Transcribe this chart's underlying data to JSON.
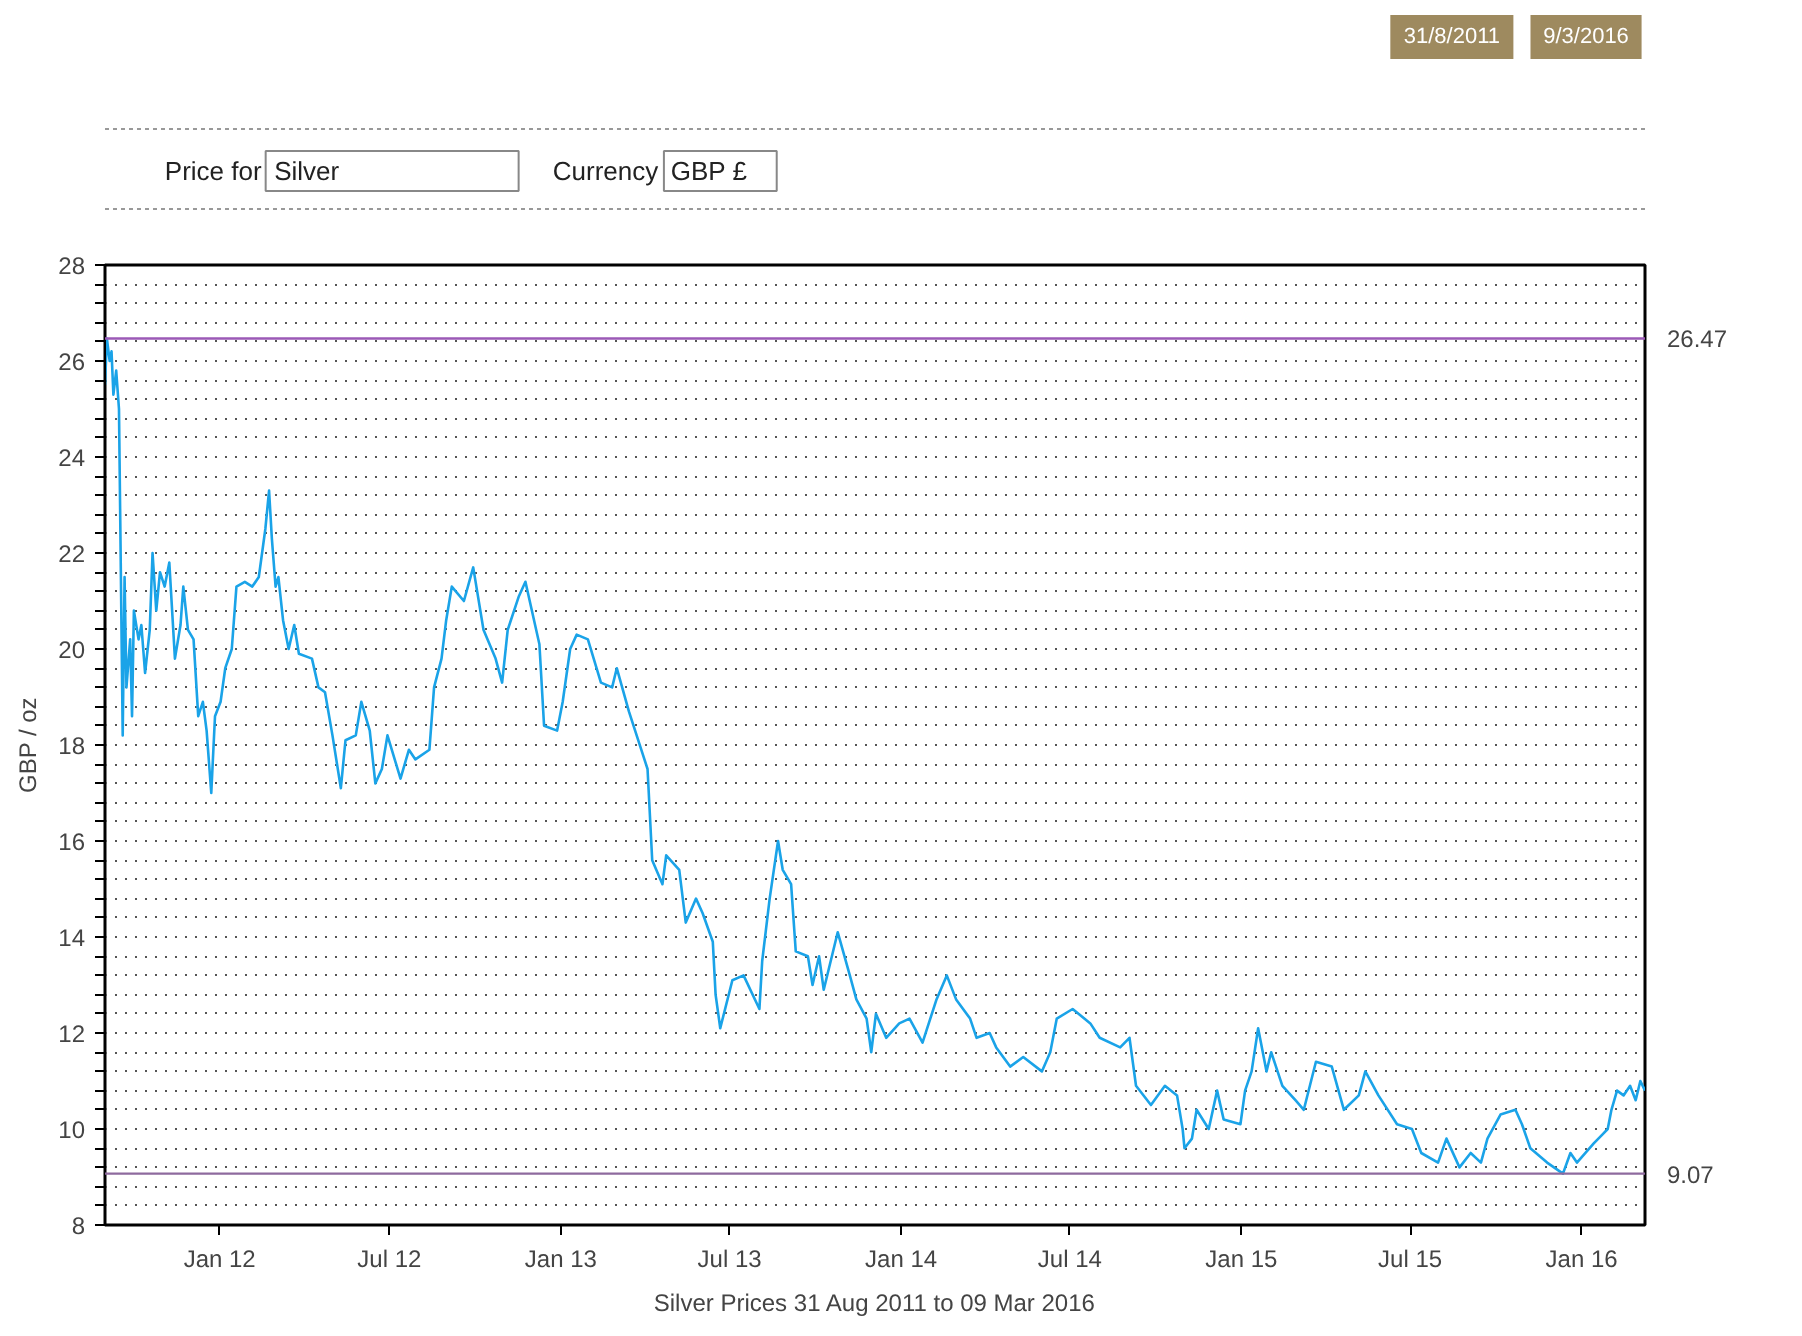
{
  "chart_data": {
    "type": "line",
    "xlabel": "Silver Prices 31 Aug 2011 to 09 Mar 2016",
    "ylabel": "GBP / oz",
    "annotations": [
      "31/8/2011",
      "9/3/2016",
      "Price for",
      "Silver",
      "Currency",
      "GBP £"
    ],
    "grid": "y",
    "xlim": [
      "2011-08-31",
      "2016-03-09"
    ],
    "ylim": [
      8,
      28
    ],
    "xticks": [
      {
        "value": "2012-01-01",
        "label": "Jan 12"
      },
      {
        "value": "2012-07-01",
        "label": "Jul 12"
      },
      {
        "value": "2013-01-01",
        "label": "Jan 13"
      },
      {
        "value": "2013-07-01",
        "label": "Jul 13"
      },
      {
        "value": "2014-01-01",
        "label": "Jan 14"
      },
      {
        "value": "2014-07-01",
        "label": "Jul 14"
      },
      {
        "value": "2015-01-01",
        "label": "Jan 15"
      },
      {
        "value": "2015-07-01",
        "label": "Jul 15"
      },
      {
        "value": "2016-01-01",
        "label": "Jan 16"
      }
    ],
    "yticks": [
      8,
      {
        "value": 8.4,
        "label": null
      },
      {
        "value": 8.8,
        "label": null
      },
      {
        "value": 9.2,
        "label": null
      },
      {
        "value": 9.6,
        "label": null
      },
      10,
      {
        "value": 10.4,
        "label": null
      },
      {
        "value": 10.8,
        "label": null
      },
      {
        "value": 11.2,
        "label": null
      },
      {
        "value": 11.6,
        "label": null
      },
      12,
      {
        "value": 12.4,
        "label": null
      },
      {
        "value": 12.8,
        "label": null
      },
      {
        "value": 13.2,
        "label": null
      },
      {
        "value": 13.6,
        "label": null
      },
      14,
      {
        "value": 14.4,
        "label": null
      },
      {
        "value": 14.8,
        "label": null
      },
      {
        "value": 15.2,
        "label": null
      },
      {
        "value": 15.6,
        "label": null
      },
      16,
      {
        "value": 16.4,
        "label": null
      },
      {
        "value": 16.8,
        "label": null
      },
      {
        "value": 17.2,
        "label": null
      },
      {
        "value": 17.6,
        "label": null
      },
      18,
      {
        "value": 18.4,
        "label": null
      },
      {
        "value": 18.8,
        "label": null
      },
      {
        "value": 19.2,
        "label": null
      },
      {
        "value": 19.6,
        "label": null
      },
      20,
      {
        "value": 20.4,
        "label": null
      },
      {
        "value": 20.8,
        "label": null
      },
      {
        "value": 21.2,
        "label": null
      },
      {
        "value": 21.6,
        "label": null
      },
      22,
      {
        "value": 22.4,
        "label": null
      },
      {
        "value": 22.8,
        "label": null
      },
      {
        "value": 23.2,
        "label": null
      },
      {
        "value": 23.6,
        "label": null
      },
      24,
      {
        "value": 24.4,
        "label": null
      },
      {
        "value": 24.8,
        "label": null
      },
      {
        "value": 25.2,
        "label": null
      },
      {
        "value": 25.6,
        "label": null
      },
      26,
      {
        "value": 26.4,
        "label": null
      },
      {
        "value": 26.8,
        "label": null
      },
      {
        "value": 27.2,
        "label": null
      },
      {
        "value": 27.6,
        "label": null
      },
      28
    ],
    "ref_lines": [
      {
        "axis": "y",
        "value": 26.47,
        "label": "26.47",
        "color": "#9b59b6"
      },
      {
        "axis": "y",
        "value": 9.07,
        "label": "9.07",
        "color": "#8e6a9e"
      }
    ],
    "series": [
      {
        "color": "#1aa3e8",
        "x": [
          "2011-08-31",
          "2011-09-02",
          "2011-09-05",
          "2011-09-07",
          "2011-09-09",
          "2011-09-12",
          "2011-09-15",
          "2011-09-19",
          "2011-09-21",
          "2011-09-23",
          "2011-09-27",
          "2011-09-29",
          "2011-10-01",
          "2011-10-06",
          "2011-10-09",
          "2011-10-13",
          "2011-10-18",
          "2011-10-21",
          "2011-10-25",
          "2011-10-29",
          "2011-11-03",
          "2011-11-08",
          "2011-11-14",
          "2011-11-20",
          "2011-11-23",
          "2011-11-28",
          "2011-12-04",
          "2011-12-09",
          "2011-12-14",
          "2011-12-18",
          "2011-12-23",
          "2011-12-27",
          "2012-01-02",
          "2012-01-07",
          "2012-01-14",
          "2012-01-19",
          "2012-01-28",
          "2012-02-05",
          "2012-02-12",
          "2012-02-19",
          "2012-02-23",
          "2012-02-26",
          "2012-03-01",
          "2012-03-04",
          "2012-03-09",
          "2012-03-15",
          "2012-03-21",
          "2012-03-26",
          "2012-04-09",
          "2012-04-16",
          "2012-04-23",
          "2012-05-01",
          "2012-05-10",
          "2012-05-15",
          "2012-05-26",
          "2012-06-01",
          "2012-06-10",
          "2012-06-16",
          "2012-06-23",
          "2012-06-29",
          "2012-07-13",
          "2012-07-22",
          "2012-07-29",
          "2012-08-13",
          "2012-08-18",
          "2012-08-26",
          "2012-08-31",
          "2012-09-06",
          "2012-09-19",
          "2012-09-29",
          "2012-10-10",
          "2012-10-23",
          "2012-10-30",
          "2012-11-05",
          "2012-11-17",
          "2012-11-24",
          "2012-12-09",
          "2012-12-14",
          "2012-12-28",
          "2013-01-03",
          "2013-01-11",
          "2013-01-18",
          "2013-01-30",
          "2013-02-13",
          "2013-02-25",
          "2013-03-02",
          "2013-03-15",
          "2013-03-30",
          "2013-04-04",
          "2013-04-09",
          "2013-04-20",
          "2013-04-24",
          "2013-05-08",
          "2013-05-15",
          "2013-05-26",
          "2013-06-02",
          "2013-06-13",
          "2013-06-16",
          "2013-06-21",
          "2013-07-04",
          "2013-07-16",
          "2013-08-02",
          "2013-08-05",
          "2013-08-13",
          "2013-08-22",
          "2013-08-27",
          "2013-09-05",
          "2013-09-10",
          "2013-09-23",
          "2013-09-28",
          "2013-10-05",
          "2013-10-10",
          "2013-10-25",
          "2013-11-07",
          "2013-11-14",
          "2013-11-25",
          "2013-11-30",
          "2013-12-05",
          "2013-12-16",
          "2013-12-30",
          "2014-01-10",
          "2014-01-24",
          "2014-02-08",
          "2014-02-19",
          "2014-03-01",
          "2014-03-16",
          "2014-03-23",
          "2014-04-06",
          "2014-04-13",
          "2014-04-28",
          "2014-05-12",
          "2014-06-01",
          "2014-06-10",
          "2014-06-17",
          "2014-07-04",
          "2014-07-23",
          "2014-08-02",
          "2014-08-24",
          "2014-09-03",
          "2014-09-10",
          "2014-09-26",
          "2014-10-11",
          "2014-10-24",
          "2014-10-30",
          "2014-11-01",
          "2014-11-09",
          "2014-11-14",
          "2014-11-27",
          "2014-12-06",
          "2014-12-13",
          "2014-12-31",
          "2015-01-05",
          "2015-01-12",
          "2015-01-19",
          "2015-01-28",
          "2015-02-02",
          "2015-02-14",
          "2015-02-28",
          "2015-03-09",
          "2015-03-22",
          "2015-04-08",
          "2015-04-21",
          "2015-05-07",
          "2015-05-14",
          "2015-05-28",
          "2015-06-17",
          "2015-07-03",
          "2015-07-13",
          "2015-07-31",
          "2015-08-09",
          "2015-08-23",
          "2015-09-04",
          "2015-09-15",
          "2015-09-22",
          "2015-10-06",
          "2015-10-22",
          "2015-10-29",
          "2015-11-07",
          "2015-11-25",
          "2015-12-12",
          "2015-12-20",
          "2015-12-27",
          "2016-01-14",
          "2016-01-24",
          "2016-01-29",
          "2016-02-02",
          "2016-02-08",
          "2016-02-15",
          "2016-02-22",
          "2016-02-28",
          "2016-03-04",
          "2016-03-09"
        ],
        "values": [
          25.5,
          26.47,
          26.0,
          26.2,
          25.3,
          25.8,
          25.0,
          18.2,
          21.5,
          19.2,
          20.2,
          18.6,
          20.8,
          20.2,
          20.5,
          19.5,
          20.4,
          22.0,
          20.8,
          21.6,
          21.3,
          21.8,
          19.8,
          20.5,
          21.3,
          20.4,
          20.2,
          18.6,
          18.9,
          18.3,
          17.0,
          18.6,
          18.9,
          19.6,
          20.0,
          21.3,
          21.4,
          21.3,
          21.5,
          22.5,
          23.3,
          22.3,
          21.3,
          21.5,
          20.6,
          20.0,
          20.5,
          19.9,
          19.8,
          19.2,
          19.1,
          18.2,
          17.1,
          18.1,
          18.2,
          18.9,
          18.3,
          17.2,
          17.5,
          18.2,
          17.3,
          17.9,
          17.7,
          17.9,
          19.2,
          19.8,
          20.6,
          21.3,
          21.0,
          21.7,
          20.4,
          19.8,
          19.3,
          20.4,
          21.1,
          21.4,
          20.1,
          18.4,
          18.3,
          18.9,
          20.0,
          20.3,
          20.2,
          19.3,
          19.2,
          19.6,
          18.7,
          17.8,
          17.5,
          15.6,
          15.1,
          15.7,
          15.4,
          14.3,
          14.8,
          14.5,
          13.9,
          12.8,
          12.1,
          13.1,
          13.2,
          12.5,
          13.5,
          14.8,
          16.0,
          15.4,
          15.1,
          13.7,
          13.6,
          13.0,
          13.6,
          12.9,
          14.1,
          13.2,
          12.7,
          12.3,
          11.6,
          12.4,
          11.9,
          12.2,
          12.3,
          11.8,
          12.7,
          13.2,
          12.7,
          12.3,
          11.9,
          12.0,
          11.7,
          11.3,
          11.5,
          11.2,
          11.6,
          12.3,
          12.5,
          12.2,
          11.9,
          11.7,
          11.9,
          10.9,
          10.5,
          10.9,
          10.7,
          10.0,
          9.6,
          9.8,
          10.4,
          10.0,
          10.8,
          10.2,
          10.1,
          10.8,
          11.2,
          12.1,
          11.2,
          11.6,
          10.9,
          10.6,
          10.4,
          11.4,
          11.3,
          10.4,
          10.7,
          11.2,
          10.7,
          10.1,
          10.0,
          9.5,
          9.3,
          9.8,
          9.2,
          9.5,
          9.3,
          9.8,
          10.3,
          10.4,
          10.1,
          9.6,
          9.3,
          9.07,
          9.5,
          9.3,
          9.7,
          9.9,
          10.0,
          10.4,
          10.8,
          10.7,
          10.9,
          10.6,
          11.0,
          10.8
        ]
      }
    ]
  }
}
